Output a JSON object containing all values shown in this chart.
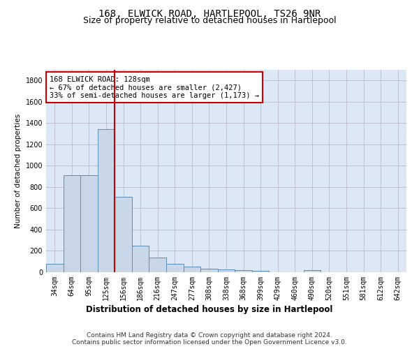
{
  "title": "168, ELWICK ROAD, HARTLEPOOL, TS26 9NR",
  "subtitle": "Size of property relative to detached houses in Hartlepool",
  "xlabel": "Distribution of detached houses by size in Hartlepool",
  "ylabel": "Number of detached properties",
  "bar_color": "#c8d8e8",
  "bar_edge_color": "#5b8db8",
  "bar_edge_width": 0.7,
  "grid_color": "#bbbbcc",
  "plot_bg_color": "#dce8f5",
  "background_color": "#ffffff",
  "categories": [
    "34sqm",
    "64sqm",
    "95sqm",
    "125sqm",
    "156sqm",
    "186sqm",
    "216sqm",
    "247sqm",
    "277sqm",
    "308sqm",
    "338sqm",
    "368sqm",
    "399sqm",
    "429sqm",
    "460sqm",
    "490sqm",
    "520sqm",
    "551sqm",
    "581sqm",
    "612sqm",
    "642sqm"
  ],
  "values": [
    80,
    910,
    910,
    1340,
    710,
    250,
    140,
    80,
    50,
    30,
    25,
    20,
    15,
    0,
    0,
    20,
    0,
    0,
    0,
    0,
    0
  ],
  "ylim": [
    0,
    1900
  ],
  "yticks": [
    0,
    200,
    400,
    600,
    800,
    1000,
    1200,
    1400,
    1600,
    1800
  ],
  "property_line_x": 3.5,
  "property_line_color": "#cc0000",
  "annotation_text": "168 ELWICK ROAD: 128sqm\n← 67% of detached houses are smaller (2,427)\n33% of semi-detached houses are larger (1,173) →",
  "annotation_box_color": "#ffffff",
  "annotation_box_edge": "#cc0000",
  "footnote1": "Contains HM Land Registry data © Crown copyright and database right 2024.",
  "footnote2": "Contains public sector information licensed under the Open Government Licence v3.0.",
  "title_fontsize": 10,
  "subtitle_fontsize": 9,
  "xlabel_fontsize": 8.5,
  "ylabel_fontsize": 7.5,
  "tick_fontsize": 7,
  "annotation_fontsize": 7.5,
  "footnote_fontsize": 6.5
}
